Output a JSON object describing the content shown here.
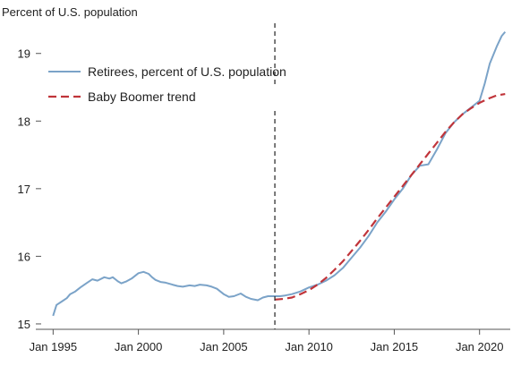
{
  "chart_data": {
    "type": "line",
    "title": "",
    "ylabel": "Percent of U.S. population",
    "xlabel": "",
    "ylim": [
      15,
      19
    ],
    "yticks": [
      15,
      16,
      17,
      18,
      19
    ],
    "xticks": [
      {
        "label": "Jan 1995",
        "x": 1995
      },
      {
        "label": "Jan 2000",
        "x": 2000
      },
      {
        "label": "Jan 2005",
        "x": 2005
      },
      {
        "label": "Jan 2010",
        "x": 2010
      },
      {
        "label": "Jan 2015",
        "x": 2015
      },
      {
        "label": "Jan 2020",
        "x": 2020
      }
    ],
    "xlim": [
      1994.3,
      2021.8
    ],
    "grid": false,
    "legend_position": "top-left",
    "vline": {
      "x": 2008.0,
      "style": "dashed",
      "color": "#333333"
    },
    "series": [
      {
        "name": "Retirees, percent of U.S. population",
        "color": "#7ba3c8",
        "dash": "solid",
        "x": [
          1995.0,
          1995.2,
          1995.5,
          1995.8,
          1996.0,
          1996.3,
          1996.6,
          1997.0,
          1997.3,
          1997.6,
          1998.0,
          1998.3,
          1998.5,
          1998.8,
          1999.0,
          1999.3,
          1999.6,
          2000.0,
          2000.3,
          2000.6,
          2000.8,
          2001.0,
          2001.3,
          2001.6,
          2002.0,
          2002.3,
          2002.6,
          2003.0,
          2003.3,
          2003.6,
          2004.0,
          2004.3,
          2004.6,
          2005.0,
          2005.3,
          2005.6,
          2006.0,
          2006.3,
          2006.6,
          2007.0,
          2007.3,
          2007.6,
          2008.0,
          2008.3,
          2008.6,
          2009.0,
          2009.5,
          2010.0,
          2010.5,
          2011.0,
          2011.5,
          2012.0,
          2012.5,
          2013.0,
          2013.5,
          2014.0,
          2014.5,
          2015.0,
          2015.5,
          2016.0,
          2016.5,
          2017.0,
          2017.5,
          2018.0,
          2018.5,
          2019.0,
          2019.3,
          2019.6,
          2020.0,
          2020.3,
          2020.6,
          2021.0,
          2021.3,
          2021.5
        ],
        "values": [
          15.12,
          15.28,
          15.33,
          15.38,
          15.44,
          15.48,
          15.54,
          15.61,
          15.66,
          15.64,
          15.69,
          15.67,
          15.69,
          15.63,
          15.6,
          15.63,
          15.67,
          15.75,
          15.77,
          15.74,
          15.69,
          15.65,
          15.62,
          15.61,
          15.58,
          15.56,
          15.55,
          15.57,
          15.56,
          15.58,
          15.57,
          15.55,
          15.52,
          15.44,
          15.4,
          15.41,
          15.45,
          15.4,
          15.37,
          15.35,
          15.39,
          15.41,
          15.41,
          15.41,
          15.42,
          15.44,
          15.48,
          15.54,
          15.58,
          15.64,
          15.72,
          15.83,
          15.98,
          16.13,
          16.3,
          16.5,
          16.66,
          16.84,
          17.0,
          17.2,
          17.34,
          17.36,
          17.58,
          17.82,
          17.98,
          18.1,
          18.16,
          18.22,
          18.3,
          18.55,
          18.85,
          19.1,
          19.26,
          19.32
        ]
      },
      {
        "name": "Baby Boomer trend",
        "color": "#c0343a",
        "dash": "dashed",
        "x": [
          2008.0,
          2008.5,
          2009.0,
          2009.5,
          2010.0,
          2010.5,
          2011.0,
          2011.5,
          2012.0,
          2012.5,
          2013.0,
          2013.5,
          2014.0,
          2014.5,
          2015.0,
          2015.5,
          2016.0,
          2016.5,
          2017.0,
          2017.5,
          2018.0,
          2018.5,
          2019.0,
          2019.5,
          2020.0,
          2020.5,
          2021.0,
          2021.5
        ],
        "values": [
          15.36,
          15.37,
          15.39,
          15.44,
          15.5,
          15.58,
          15.68,
          15.8,
          15.93,
          16.08,
          16.23,
          16.39,
          16.56,
          16.72,
          16.88,
          17.04,
          17.2,
          17.36,
          17.52,
          17.68,
          17.84,
          17.98,
          18.1,
          18.19,
          18.27,
          18.33,
          18.38,
          18.4
        ]
      }
    ]
  }
}
